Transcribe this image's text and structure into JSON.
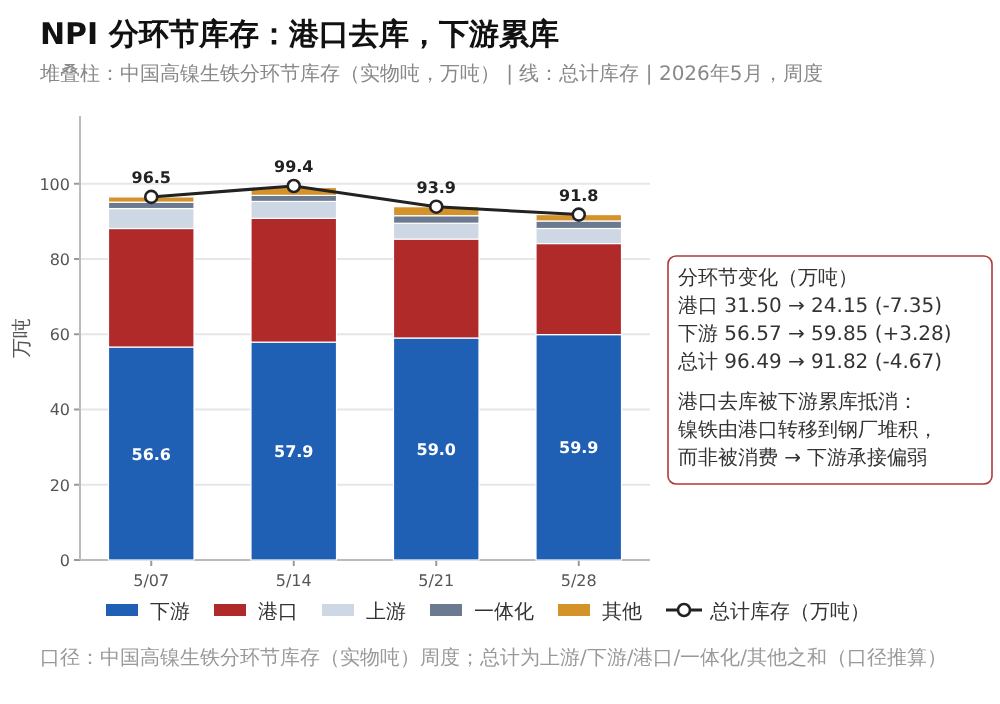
{
  "chart_data": {
    "type": "bar",
    "stacked": true,
    "title": "NPI 分环节库存：港口去库，下游累库",
    "subtitle": "堆叠柱：中国高镍生铁分环节库存（实物吨，万吨） | 线：总计库存 | 2026年5月，周度",
    "ylabel": "万吨",
    "categories": [
      "5/07",
      "5/14",
      "5/21",
      "5/28"
    ],
    "series": [
      {
        "name": "下游",
        "color": "#1f5fb4",
        "values": [
          56.6,
          57.9,
          59.0,
          59.9
        ],
        "value_labels": [
          "56.6",
          "57.9",
          "59.0",
          "59.9"
        ]
      },
      {
        "name": "港口",
        "color": "#b02a2a",
        "values": [
          31.5,
          32.9,
          26.3,
          24.2
        ]
      },
      {
        "name": "上游",
        "color": "#cdd8e4",
        "values": [
          5.3,
          4.5,
          4.2,
          4.0
        ]
      },
      {
        "name": "一体化",
        "color": "#6b7a90",
        "values": [
          1.7,
          1.6,
          2.0,
          2.0
        ]
      },
      {
        "name": "其他",
        "color": "#d4922a",
        "values": [
          1.4,
          2.1,
          2.4,
          1.7
        ]
      },
      {
        "name": "总计库存（万吨）",
        "type": "line",
        "color": "#222222",
        "values": [
          96.5,
          99.4,
          93.9,
          91.8
        ],
        "value_labels": [
          "96.5",
          "99.4",
          "93.9",
          "91.8"
        ]
      }
    ],
    "ylim": [
      0,
      118
    ],
    "yticks": [
      0,
      20,
      40,
      60,
      80,
      100
    ],
    "grid": "y",
    "legend": "bottom",
    "marker": "circle",
    "annotations": [
      "分环节变化（万吨）",
      "港口 31.50 → 24.15 (-7.35)",
      "下游 56.57 → 59.85 (+3.28)",
      "总计 96.49 → 91.82 (-4.67)",
      "港口去库被下游累库抵消：",
      "镍铁由港口转移到钢厂堆积，",
      "而非被消费 → 下游承接偏弱",
      "口径：中国高镍生铁分环节库存（实物吨）周度；总计为上游/下游/港口/一体化/其他之和（口径推算）"
    ]
  }
}
